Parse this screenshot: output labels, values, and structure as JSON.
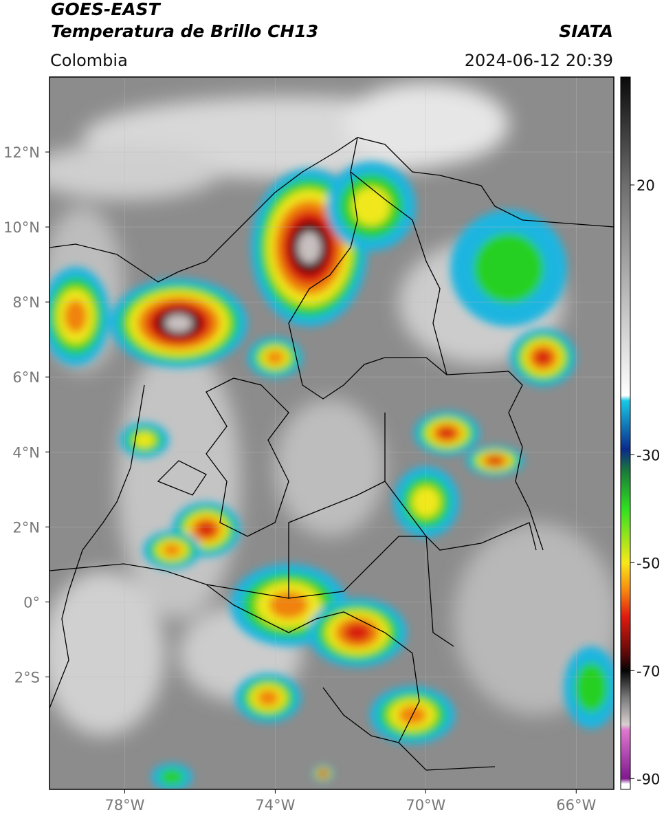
{
  "header": {
    "title": "GOES-EAST",
    "subtitle": "Temperatura de Brillo CH13",
    "source": "SIATA",
    "region": "Colombia",
    "timestamp": "2024-06-12 20:39"
  },
  "map": {
    "xlim": [
      -80,
      -65
    ],
    "ylim": [
      -5,
      14
    ],
    "xticks": [
      {
        "value": -78,
        "label": "78°W"
      },
      {
        "value": -74,
        "label": "74°W"
      },
      {
        "value": -70,
        "label": "70°W"
      },
      {
        "value": -66,
        "label": "66°W"
      }
    ],
    "yticks": [
      {
        "value": 12,
        "label": "12°N"
      },
      {
        "value": 10,
        "label": "10°N"
      },
      {
        "value": 8,
        "label": "8°N"
      },
      {
        "value": 6,
        "label": "6°N"
      },
      {
        "value": 4,
        "label": "4°N"
      },
      {
        "value": 2,
        "label": "2°N"
      },
      {
        "value": 0,
        "label": "0°"
      },
      {
        "value": -2,
        "label": "2°S"
      }
    ],
    "grid": true
  },
  "colorbar": {
    "clim": [
      -92,
      40
    ],
    "ticks": [
      20,
      -30,
      -50,
      -70,
      -90
    ],
    "colormap": [
      {
        "value": 40,
        "color": "#0a0a0a"
      },
      {
        "value": 20,
        "color": "#6e6e6e"
      },
      {
        "value": -19,
        "color": "#ffffff"
      },
      {
        "value": -20,
        "color": "#19c8e6"
      },
      {
        "value": -29,
        "color": "#0a2a8c"
      },
      {
        "value": -33,
        "color": "#1a7a3a"
      },
      {
        "value": -40,
        "color": "#30e020"
      },
      {
        "value": -50,
        "color": "#f8e81a"
      },
      {
        "value": -55,
        "color": "#f88a10"
      },
      {
        "value": -60,
        "color": "#e01a10"
      },
      {
        "value": -67,
        "color": "#5a0808"
      },
      {
        "value": -70,
        "color": "#050505"
      },
      {
        "value": -75,
        "color": "#7a7a7a"
      },
      {
        "value": -80,
        "color": "#d8d0d0"
      },
      {
        "value": -81,
        "color": "#e078d0"
      },
      {
        "value": -90,
        "color": "#801890"
      },
      {
        "value": -91,
        "color": "#ffffff"
      }
    ]
  }
}
